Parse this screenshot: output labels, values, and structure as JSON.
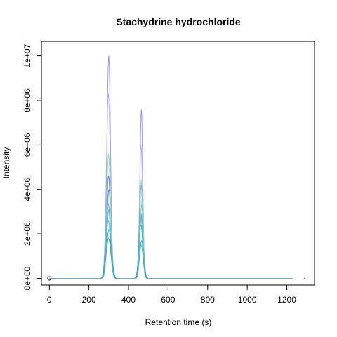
{
  "chart_data": {
    "type": "line",
    "title": "Stachydrine hydrochloride",
    "xlabel": "Retention time (s)",
    "ylabel": "Intensity",
    "xlim": [
      -40,
      1340
    ],
    "ylim": [
      -300000,
      10650000
    ],
    "x_ticks": [
      0,
      200,
      400,
      600,
      800,
      1000,
      1200
    ],
    "x_tick_labels": [
      "0",
      "200",
      "400",
      "600",
      "800",
      "1000",
      "1200"
    ],
    "y_ticks": [
      0,
      2000000,
      4000000,
      6000000,
      8000000,
      10000000
    ],
    "y_tick_labels": [
      "0e+00",
      "2e+06",
      "4e+06",
      "6e+06",
      "8e+06",
      "1e+07"
    ],
    "grid": false,
    "legend": "none",
    "series": [
      {
        "color": "#8888ff",
        "peaks": [
          {
            "rt": 300,
            "height": 10000000,
            "width": 9
          },
          {
            "rt": 465,
            "height": 7600000,
            "width": 7
          }
        ]
      },
      {
        "color": "#a9a9ff",
        "peaks": [
          {
            "rt": 298,
            "height": 8300000,
            "width": 10
          },
          {
            "rt": 463,
            "height": 6000000,
            "width": 8
          }
        ]
      },
      {
        "color": "#6b6bf5",
        "peaks": [
          {
            "rt": 299,
            "height": 4600000,
            "width": 10
          },
          {
            "rt": 464,
            "height": 4200000,
            "width": 8
          }
        ]
      },
      {
        "color": "#5a72e8",
        "peaks": [
          {
            "rt": 301,
            "height": 4000000,
            "width": 11
          },
          {
            "rt": 466,
            "height": 3300000,
            "width": 9
          }
        ]
      },
      {
        "color": "#4f86e0",
        "peaks": [
          {
            "rt": 297,
            "height": 3400000,
            "width": 11
          },
          {
            "rt": 462,
            "height": 2900000,
            "width": 9
          }
        ]
      },
      {
        "color": "#7fe07f",
        "peaks": [
          {
            "rt": 299,
            "height": 5600000,
            "width": 9
          },
          {
            "rt": 464,
            "height": 4400000,
            "width": 7
          }
        ]
      },
      {
        "color": "#9ce89c",
        "peaks": [
          {
            "rt": 302,
            "height": 3800000,
            "width": 10
          },
          {
            "rt": 467,
            "height": 3500000,
            "width": 8
          }
        ]
      },
      {
        "color": "#56d98a",
        "peaks": [
          {
            "rt": 300,
            "height": 3000000,
            "width": 11
          },
          {
            "rt": 465,
            "height": 2700000,
            "width": 9
          }
        ]
      },
      {
        "color": "#3cc2a0",
        "peaks": [
          {
            "rt": 298,
            "height": 2600000,
            "width": 11
          },
          {
            "rt": 463,
            "height": 2400000,
            "width": 9
          }
        ]
      },
      {
        "color": "#2aa0a0",
        "peaks": [
          {
            "rt": 301,
            "height": 2200000,
            "width": 12
          },
          {
            "rt": 466,
            "height": 1700000,
            "width": 10
          }
        ]
      },
      {
        "color": "#3c9f7a",
        "peaks": [
          {
            "rt": 299,
            "height": 1800000,
            "width": 12
          },
          {
            "rt": 464,
            "height": 1500000,
            "width": 10
          }
        ]
      },
      {
        "color": "#66aaff",
        "peaks": [
          {
            "rt": 300,
            "height": 3100000,
            "width": 10
          },
          {
            "rt": 465,
            "height": 2900000,
            "width": 8
          }
        ]
      }
    ],
    "x_start": 0,
    "x_end": 1230,
    "marker": {
      "x": 0,
      "y": 0,
      "shape": "open-circle"
    },
    "trailing_point": {
      "x": 1290,
      "y": 0
    }
  }
}
